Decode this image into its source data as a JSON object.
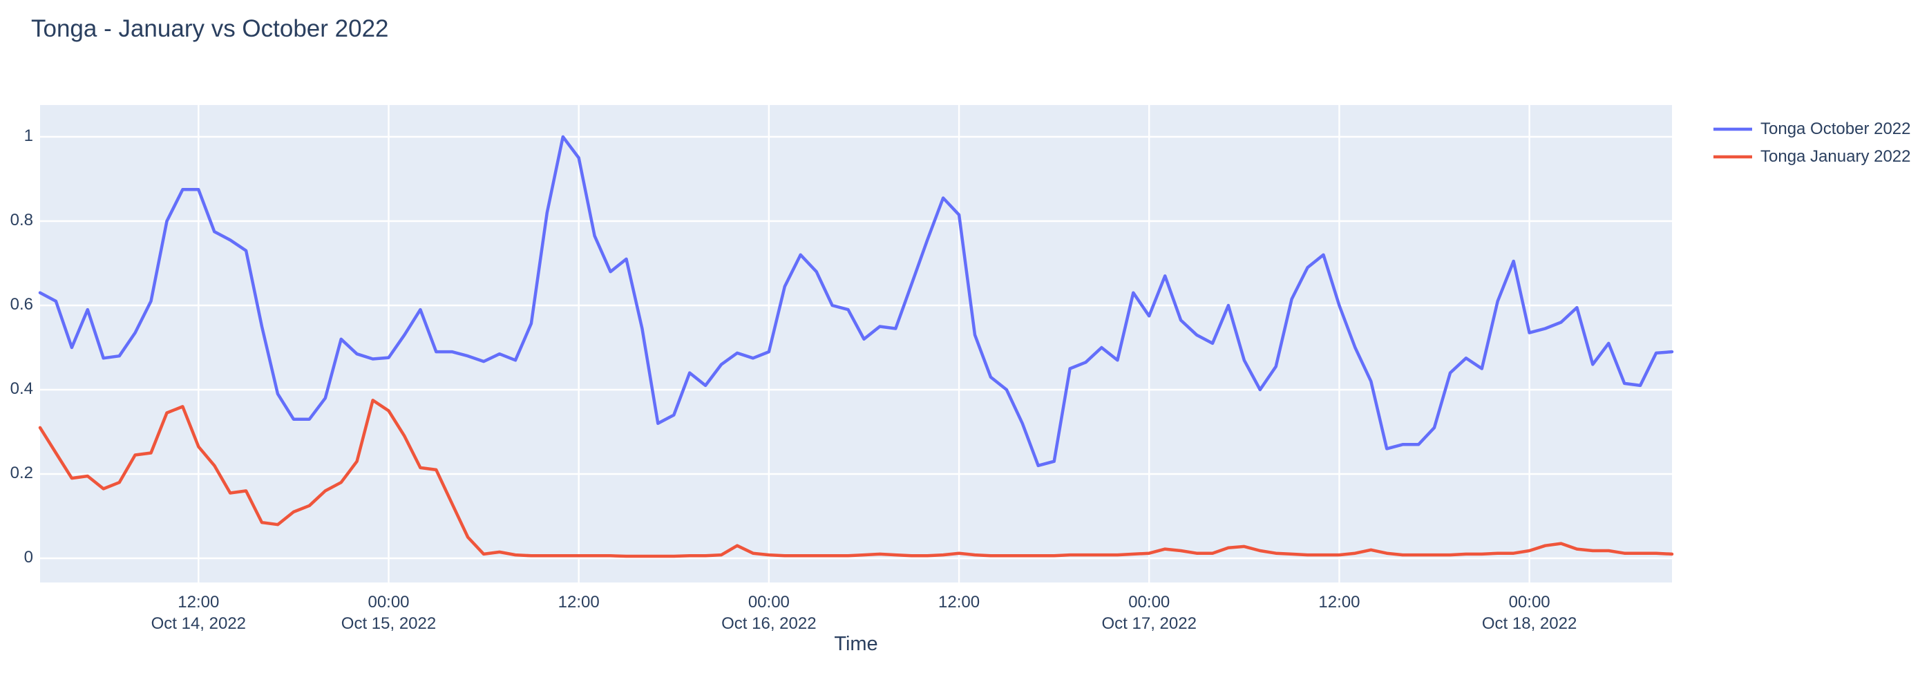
{
  "title": "Tonga - January vs October 2022",
  "colors": {
    "text": "#2a3f5f",
    "plot_background": "#e5ecf6",
    "gridline": "#ffffff",
    "series_october": "#636efa",
    "series_january": "#ef553b",
    "page_background": "#ffffff"
  },
  "legend": {
    "items": [
      {
        "label": "Tonga October 2022",
        "color": "#636efa"
      },
      {
        "label": "Tonga January 2022",
        "color": "#ef553b"
      }
    ]
  },
  "axes": {
    "x_title": "Time",
    "y_ticks": [
      {
        "label": "0",
        "value": 0
      },
      {
        "label": "0.2",
        "value": 0.2
      },
      {
        "label": "0.4",
        "value": 0.4
      },
      {
        "label": "0.6",
        "value": 0.6
      },
      {
        "label": "0.8",
        "value": 0.8
      },
      {
        "label": "1",
        "value": 1
      }
    ],
    "x_ticks": [
      {
        "time": "12:00",
        "date": "Oct 14, 2022",
        "hour_offset": 10
      },
      {
        "time": "00:00",
        "date": "Oct 15, 2022",
        "hour_offset": 22
      },
      {
        "time": "12:00",
        "date": "",
        "hour_offset": 34
      },
      {
        "time": "00:00",
        "date": "Oct 16, 2022",
        "hour_offset": 46
      },
      {
        "time": "12:00",
        "date": "",
        "hour_offset": 58
      },
      {
        "time": "00:00",
        "date": "Oct 17, 2022",
        "hour_offset": 70
      },
      {
        "time": "12:00",
        "date": "",
        "hour_offset": 82
      },
      {
        "time": "00:00",
        "date": "Oct 18, 2022",
        "hour_offset": 94
      }
    ]
  },
  "chart_data": {
    "type": "line",
    "title": "Tonga - January vs October 2022",
    "xlabel": "Time",
    "ylabel": "",
    "x_start": "2022-10-14 02:00",
    "x_end": "2022-10-18 09:00",
    "x_interval_hours": 1,
    "ylim": [
      -0.057,
      1.073
    ],
    "grid": true,
    "legend_position": "right-top",
    "series": [
      {
        "name": "Tonga October 2022",
        "color": "#636efa",
        "values": [
          0.63,
          0.61,
          0.5,
          0.59,
          0.475,
          0.48,
          0.535,
          0.61,
          0.8,
          0.875,
          0.875,
          0.775,
          0.755,
          0.73,
          0.55,
          0.39,
          0.33,
          0.33,
          0.38,
          0.52,
          0.485,
          0.473,
          0.476,
          0.53,
          0.59,
          0.49,
          0.49,
          0.48,
          0.467,
          0.485,
          0.47,
          0.557,
          0.82,
          1.0,
          0.95,
          0.765,
          0.68,
          0.71,
          0.545,
          0.32,
          0.34,
          0.44,
          0.41,
          0.46,
          0.487,
          0.475,
          0.49,
          0.645,
          0.72,
          0.68,
          0.6,
          0.59,
          0.52,
          0.55,
          0.545,
          0.65,
          0.755,
          0.855,
          0.815,
          0.53,
          0.43,
          0.4,
          0.32,
          0.22,
          0.23,
          0.45,
          0.465,
          0.5,
          0.47,
          0.63,
          0.575,
          0.67,
          0.565,
          0.53,
          0.51,
          0.6,
          0.47,
          0.4,
          0.455,
          0.615,
          0.69,
          0.72,
          0.6,
          0.5,
          0.42,
          0.26,
          0.27,
          0.27,
          0.31,
          0.44,
          0.475,
          0.45,
          0.61,
          0.705,
          0.535,
          0.545,
          0.56,
          0.595,
          0.46,
          0.51,
          0.415,
          0.41,
          0.487,
          0.49
        ]
      },
      {
        "name": "Tonga January 2022",
        "color": "#ef553b",
        "values": [
          0.31,
          0.25,
          0.19,
          0.195,
          0.165,
          0.18,
          0.245,
          0.25,
          0.345,
          0.36,
          0.265,
          0.22,
          0.155,
          0.16,
          0.085,
          0.08,
          0.11,
          0.125,
          0.16,
          0.18,
          0.23,
          0.375,
          0.35,
          0.29,
          0.215,
          0.21,
          0.13,
          0.05,
          0.01,
          0.015,
          0.008,
          0.006,
          0.006,
          0.006,
          0.006,
          0.006,
          0.006,
          0.005,
          0.005,
          0.005,
          0.005,
          0.006,
          0.006,
          0.008,
          0.03,
          0.012,
          0.008,
          0.006,
          0.006,
          0.006,
          0.006,
          0.006,
          0.008,
          0.01,
          0.008,
          0.006,
          0.006,
          0.008,
          0.012,
          0.008,
          0.006,
          0.006,
          0.006,
          0.006,
          0.006,
          0.008,
          0.008,
          0.008,
          0.008,
          0.01,
          0.012,
          0.022,
          0.018,
          0.012,
          0.012,
          0.025,
          0.028,
          0.018,
          0.012,
          0.01,
          0.008,
          0.008,
          0.008,
          0.012,
          0.02,
          0.012,
          0.008,
          0.008,
          0.008,
          0.008,
          0.01,
          0.01,
          0.012,
          0.012,
          0.018,
          0.03,
          0.035,
          0.022,
          0.018,
          0.018,
          0.012,
          0.012,
          0.012,
          0.01
        ]
      }
    ]
  }
}
